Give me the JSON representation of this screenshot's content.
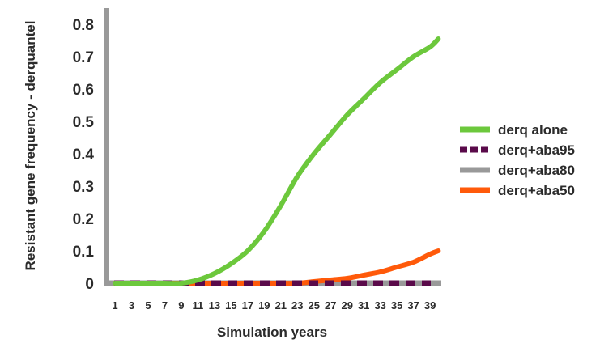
{
  "chart_data": {
    "type": "line",
    "title": "",
    "xlabel": "Simulation years",
    "ylabel": "Resistant gene frequency - derquantel",
    "ylim": [
      0,
      0.8
    ],
    "xlim": [
      1,
      40
    ],
    "grid": false,
    "legend_position": "right",
    "y_ticks": [
      "0",
      "0.1",
      "0.2",
      "0.3",
      "0.4",
      "0.5",
      "0.6",
      "0.7",
      "0.8"
    ],
    "x_tick_labels": [
      "1",
      "3",
      "5",
      "7",
      "9",
      "11",
      "13",
      "15",
      "17",
      "19",
      "21",
      "23",
      "25",
      "27",
      "29",
      "31",
      "33",
      "35",
      "37",
      "39"
    ],
    "x": [
      1,
      3,
      5,
      7,
      9,
      11,
      13,
      15,
      17,
      19,
      21,
      23,
      25,
      27,
      29,
      31,
      33,
      35,
      37,
      39,
      40
    ],
    "series": [
      {
        "name": "derq alone",
        "color": "#6cc83c",
        "style": "solid",
        "values": [
          0,
          0,
          0,
          0,
          0,
          0.01,
          0.03,
          0.06,
          0.1,
          0.16,
          0.24,
          0.33,
          0.4,
          0.46,
          0.52,
          0.57,
          0.62,
          0.66,
          0.7,
          0.73,
          0.755
        ]
      },
      {
        "name": "derq+aba95",
        "color": "#5a0a4a",
        "style": "dashed",
        "values": [
          0,
          0,
          0,
          0,
          0,
          0,
          0,
          0,
          0,
          0,
          0,
          0,
          0,
          0,
          0,
          0,
          0,
          0,
          0,
          0,
          0
        ]
      },
      {
        "name": "derq+aba80",
        "color": "#999999",
        "style": "solid",
        "values": [
          0,
          0,
          0,
          0,
          0,
          0,
          0,
          0,
          0,
          0,
          0,
          0,
          0,
          0,
          0,
          0,
          0,
          0,
          0,
          0,
          0
        ]
      },
      {
        "name": "derq+aba50",
        "color": "#ff5a0a",
        "style": "solid",
        "values": [
          0,
          0,
          0,
          0,
          0,
          0,
          0,
          0,
          0,
          0,
          0,
          0,
          0.005,
          0.01,
          0.015,
          0.025,
          0.035,
          0.05,
          0.065,
          0.09,
          0.1
        ]
      }
    ]
  }
}
